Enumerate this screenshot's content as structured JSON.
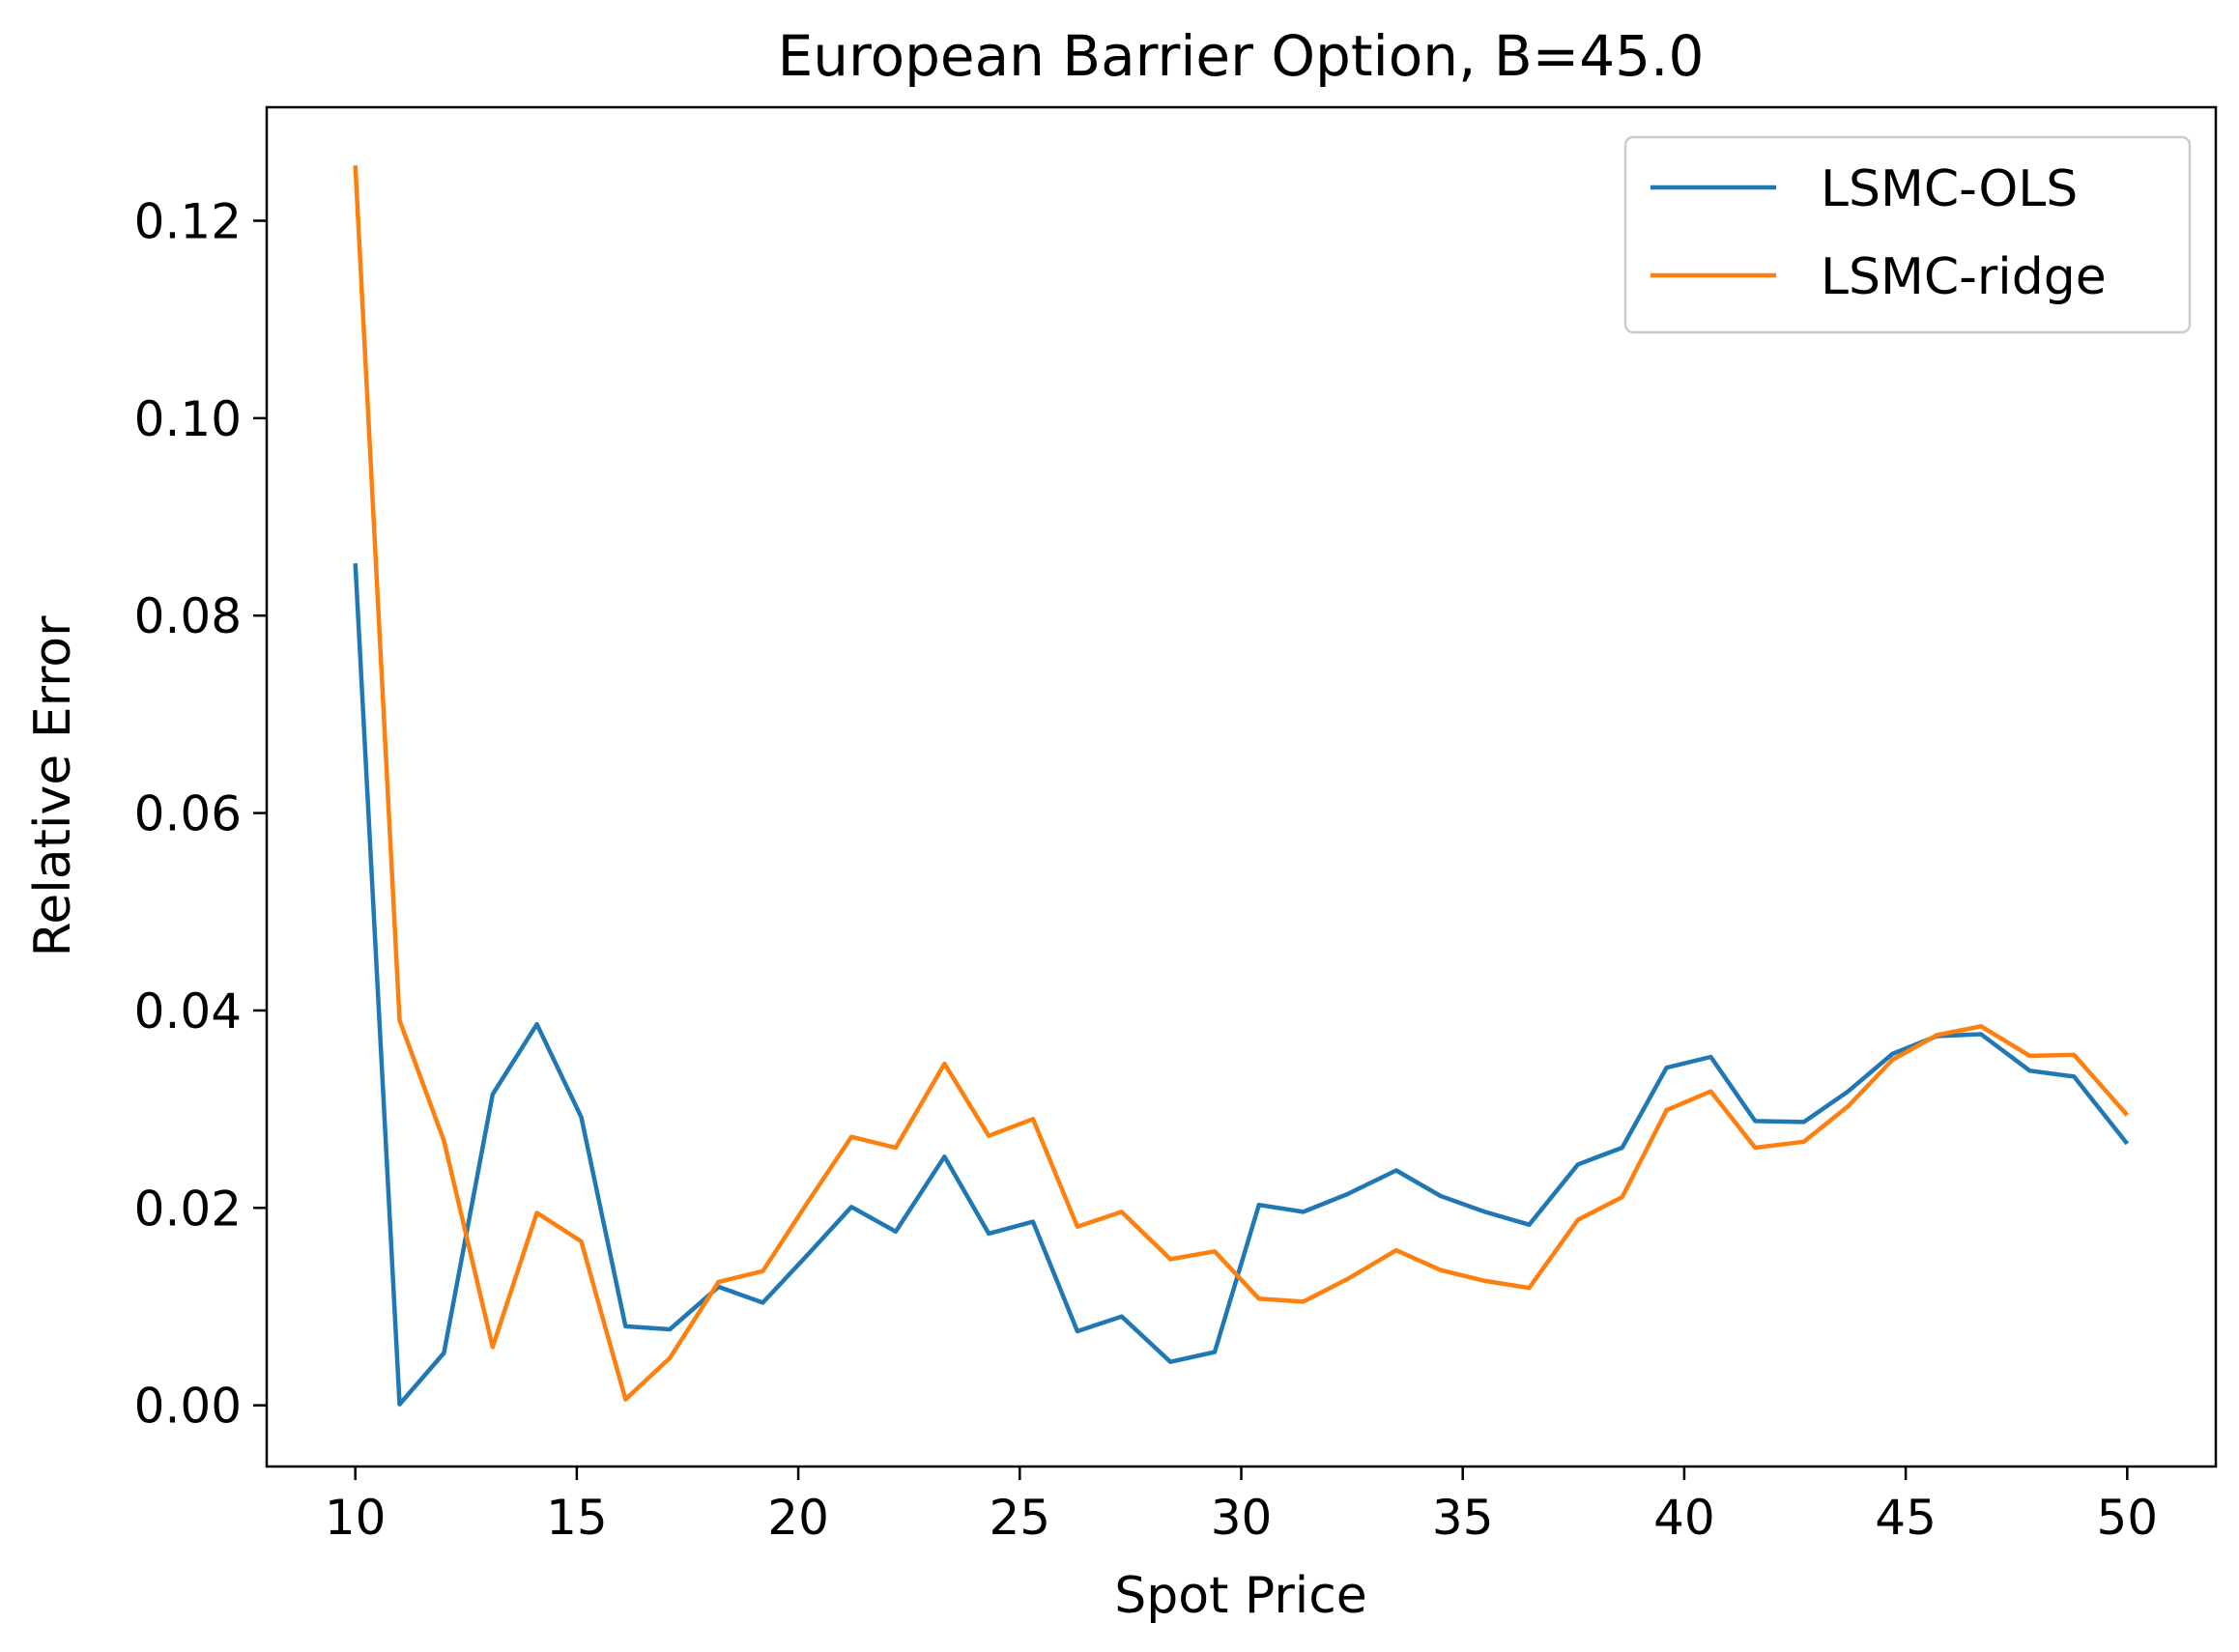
{
  "chart_data": {
    "type": "line",
    "title": "European Barrier Option, B=45.0",
    "xlabel": "Spot Price",
    "ylabel": "Relative Error",
    "xlim": [
      8,
      52
    ],
    "ylim": [
      -0.0062,
      0.1315
    ],
    "xticks": [
      10,
      15,
      20,
      25,
      30,
      35,
      40,
      45,
      50
    ],
    "xtick_labels": [
      "10",
      "15",
      "20",
      "25",
      "30",
      "35",
      "40",
      "45",
      "50"
    ],
    "yticks": [
      0.0,
      0.02,
      0.04,
      0.06,
      0.08,
      0.1,
      0.12
    ],
    "ytick_labels": [
      "0.00",
      "0.02",
      "0.04",
      "0.06",
      "0.08",
      "0.10",
      "0.12"
    ],
    "grid": false,
    "legend": "top-right",
    "x": [
      10.0,
      11.0,
      12.0,
      13.1,
      14.1,
      15.1,
      16.1,
      17.1,
      18.2,
      19.2,
      20.2,
      21.2,
      22.2,
      23.3,
      24.3,
      25.3,
      26.3,
      27.3,
      28.4,
      29.4,
      30.4,
      31.4,
      32.4,
      33.5,
      34.5,
      35.5,
      36.5,
      37.6,
      38.6,
      39.6,
      40.6,
      41.6,
      42.7,
      43.7,
      44.7,
      45.7,
      46.7,
      47.8,
      48.8,
      50.0
    ],
    "series": [
      {
        "name": "LSMC-OLS",
        "color": "#1f77b4",
        "values": [
          0.0853,
          0.0001,
          0.0053,
          0.0315,
          0.0386,
          0.0292,
          0.008,
          0.0077,
          0.012,
          0.0104,
          0.0152,
          0.0201,
          0.0176,
          0.0252,
          0.0174,
          0.0186,
          0.0075,
          0.009,
          0.0044,
          0.0054,
          0.0203,
          0.0196,
          0.0214,
          0.0238,
          0.0212,
          0.0196,
          0.0183,
          0.0244,
          0.0261,
          0.0342,
          0.0353,
          0.0288,
          0.0287,
          0.0318,
          0.0356,
          0.0374,
          0.0376,
          0.0339,
          0.0333,
          0.0265
        ]
      },
      {
        "name": "LSMC-ridge",
        "color": "#ff7f0e",
        "values": [
          0.1256,
          0.039,
          0.0268,
          0.0059,
          0.0195,
          0.0166,
          0.0006,
          0.0048,
          0.0125,
          0.0136,
          0.0205,
          0.0272,
          0.0261,
          0.0346,
          0.0273,
          0.029,
          0.0181,
          0.0196,
          0.0148,
          0.0156,
          0.0108,
          0.0105,
          0.0128,
          0.0157,
          0.0137,
          0.0126,
          0.0119,
          0.0188,
          0.0211,
          0.0299,
          0.0318,
          0.0261,
          0.0267,
          0.0303,
          0.035,
          0.0375,
          0.0384,
          0.0354,
          0.0355,
          0.0294
        ]
      }
    ]
  }
}
